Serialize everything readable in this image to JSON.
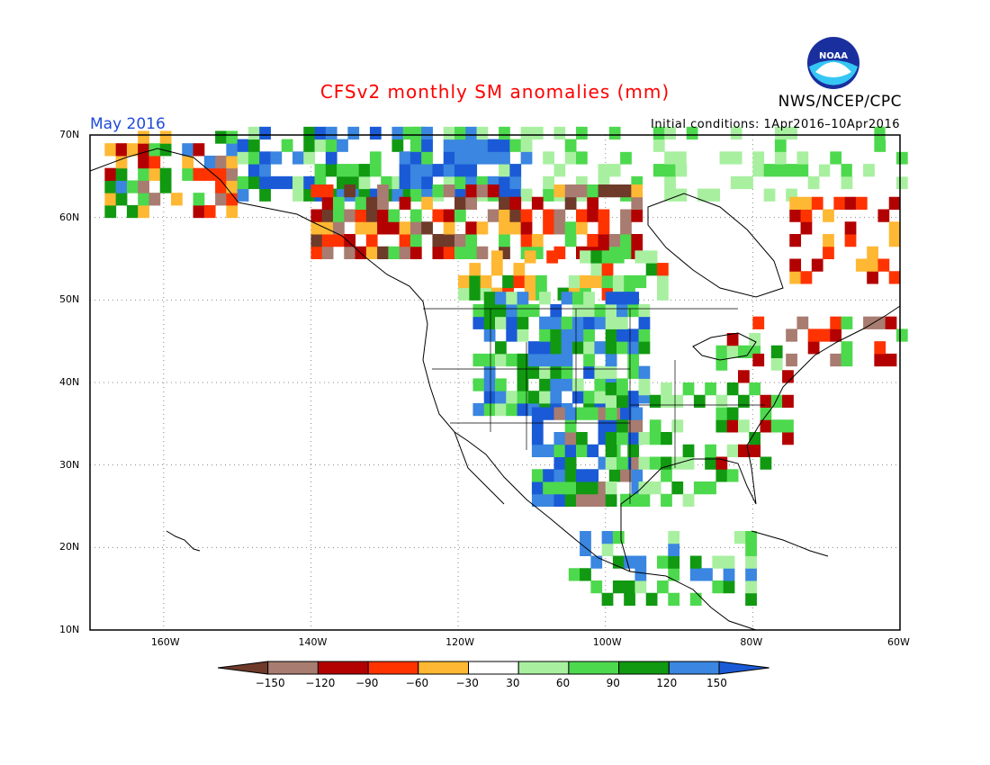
{
  "title": "CFSv2 monthly SM anomalies (mm)",
  "agency": "NWS/NCEP/CPC",
  "valid_month": "May 2016",
  "initial_conditions": "Initial conditions: 1Apr2016–10Apr2016",
  "logo_text": "NOAA",
  "lat_labels": [
    "70N",
    "60N",
    "50N",
    "40N",
    "30N",
    "20N",
    "10N"
  ],
  "lon_labels": [
    "160W",
    "140W",
    "120W",
    "100W",
    "80W",
    "60W"
  ],
  "colorbar": {
    "labels": [
      "−150",
      "−120",
      "−90",
      "−60",
      "−30",
      "30",
      "60",
      "90",
      "120",
      "150"
    ],
    "colors": [
      "#6e3a2a",
      "#a87c70",
      "#b30000",
      "#ff3300",
      "#ffb833",
      "#ffffff",
      "#a8f0a0",
      "#4dd94d",
      "#119911",
      "#3a86e0",
      "#1a5ad6"
    ]
  }
}
